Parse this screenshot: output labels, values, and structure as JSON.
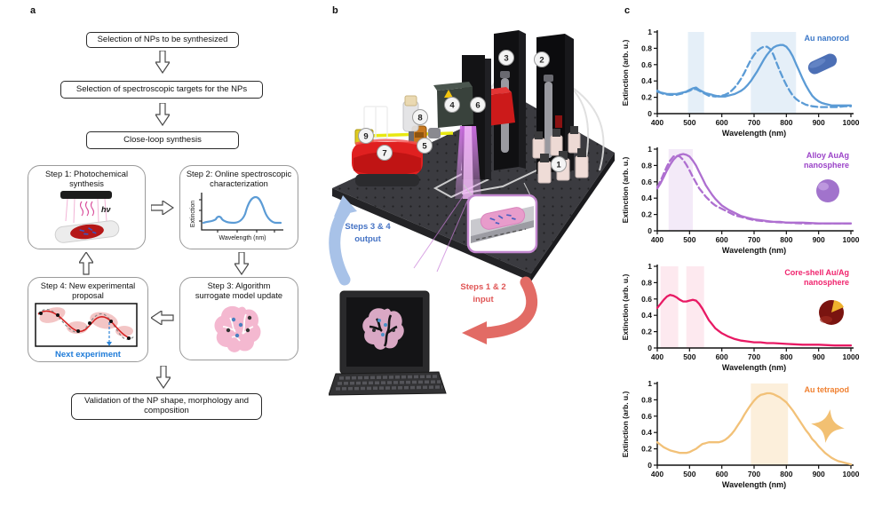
{
  "figure": {
    "panel_a_label": "a",
    "panel_b_label": "b",
    "panel_c_label": "c"
  },
  "flowchart": {
    "box_select_np": "Selection of NPs to be synthesized",
    "box_select_targets": "Selection of spectroscopic targets for the NPs",
    "box_close_loop": "Close-loop synthesis",
    "step1_title_line1": "Step 1: Photochemical",
    "step1_title_line2": "synthesis",
    "step1_hv": "hν",
    "step2_title_line1": "Step 2: Online spectroscopic",
    "step2_title_line2": "characterization",
    "step2_ylabel": "Extinction",
    "step2_xlabel": "Wavelength (nm)",
    "step3_title_line1": "Step 3: Algorithm",
    "step3_title_line2": "surrogate model update",
    "step4_title_line1": "Step 4: New experimental",
    "step4_title_line2": "proposal",
    "step4_annotation": "Next experiment",
    "step4_annotation_color": "#1E7BD8",
    "box_validation_line1": "Validation of the NP shape, morphology and",
    "box_validation_line2": "composition"
  },
  "apparatus": {
    "badges": [
      "1",
      "2",
      "3",
      "4",
      "5",
      "6",
      "7",
      "8",
      "9"
    ],
    "output_arrow_line1": "Steps 3 & 4",
    "output_arrow_line2": "output",
    "input_arrow_line1": "Steps 1 & 2",
    "input_arrow_line2": "input",
    "output_text_color": "#4472C4",
    "input_text_color": "#E05555",
    "output_arrow_color": "#A8C2E8",
    "input_arrow_color": "#E26B65"
  },
  "chart_data": [
    {
      "type": "line",
      "legend": [
        "Au nanorod"
      ],
      "legend_color": "#3C78C8",
      "icon": "nanorod-icon",
      "xlabel": "Wavelength (nm)",
      "ylabel": "Extinction (arb. u.)",
      "xlim": [
        400,
        1000
      ],
      "ylim": [
        0,
        1
      ],
      "xticks": [
        400,
        500,
        600,
        700,
        800,
        900,
        1000
      ],
      "yticks": [
        0,
        0.2,
        0.4,
        0.6,
        0.8,
        1
      ],
      "bands": [
        [
          495,
          545
        ],
        [
          690,
          830
        ]
      ],
      "band_color": "rgba(91,155,213,0.16)",
      "series": [
        {
          "name": "solid",
          "style": "solid",
          "color": "#5B9BD5",
          "x": [
            400,
            410,
            420,
            430,
            440,
            450,
            460,
            470,
            480,
            490,
            500,
            510,
            520,
            530,
            540,
            550,
            560,
            570,
            580,
            590,
            600,
            610,
            620,
            630,
            640,
            650,
            660,
            670,
            680,
            690,
            700,
            710,
            720,
            730,
            740,
            750,
            760,
            770,
            780,
            790,
            800,
            810,
            820,
            830,
            840,
            850,
            860,
            870,
            880,
            890,
            900,
            910,
            920,
            930,
            940,
            950,
            960,
            970,
            980,
            990,
            1000
          ],
          "y": [
            0.28,
            0.26,
            0.25,
            0.24,
            0.24,
            0.24,
            0.24,
            0.25,
            0.26,
            0.27,
            0.29,
            0.31,
            0.32,
            0.29,
            0.27,
            0.25,
            0.24,
            0.23,
            0.22,
            0.21,
            0.21,
            0.21,
            0.22,
            0.23,
            0.24,
            0.26,
            0.28,
            0.31,
            0.35,
            0.4,
            0.46,
            0.52,
            0.59,
            0.66,
            0.72,
            0.77,
            0.81,
            0.83,
            0.84,
            0.84,
            0.82,
            0.77,
            0.7,
            0.61,
            0.52,
            0.43,
            0.35,
            0.28,
            0.22,
            0.18,
            0.15,
            0.13,
            0.12,
            0.11,
            0.1,
            0.1,
            0.1,
            0.1,
            0.1,
            0.1,
            0.1
          ]
        },
        {
          "name": "dashed",
          "style": "dashed",
          "color": "#5B9BD5",
          "x": [
            400,
            420,
            440,
            460,
            480,
            500,
            510,
            520,
            530,
            540,
            560,
            580,
            600,
            610,
            620,
            630,
            640,
            650,
            660,
            670,
            680,
            690,
            700,
            710,
            720,
            730,
            740,
            750,
            760,
            770,
            780,
            790,
            800,
            810,
            820,
            830,
            840,
            850,
            860,
            880,
            900,
            920,
            940,
            960,
            980,
            1000
          ],
          "y": [
            0.27,
            0.24,
            0.23,
            0.23,
            0.25,
            0.28,
            0.3,
            0.3,
            0.28,
            0.26,
            0.22,
            0.21,
            0.22,
            0.23,
            0.25,
            0.28,
            0.32,
            0.37,
            0.43,
            0.5,
            0.58,
            0.66,
            0.72,
            0.77,
            0.8,
            0.82,
            0.82,
            0.79,
            0.72,
            0.62,
            0.52,
            0.43,
            0.35,
            0.28,
            0.22,
            0.18,
            0.15,
            0.13,
            0.11,
            0.09,
            0.08,
            0.08,
            0.08,
            0.08,
            0.09,
            0.09
          ]
        }
      ]
    },
    {
      "type": "line",
      "legend": [
        "Alloy AuAg",
        "nanosphere"
      ],
      "legend_color": "#9B43C8",
      "icon": "alloy-nanosphere-icon",
      "xlabel": "Wavelength (nm)",
      "ylabel": "Extinction (arb. u.)",
      "xlim": [
        400,
        1000
      ],
      "ylim": [
        0,
        1
      ],
      "xticks": [
        400,
        500,
        600,
        700,
        800,
        900,
        1000
      ],
      "yticks": [
        0,
        0.2,
        0.4,
        0.6,
        0.8,
        1
      ],
      "bands": [
        [
          435,
          510
        ]
      ],
      "band_color": "rgba(174,111,208,0.15)",
      "series": [
        {
          "name": "solid",
          "style": "solid",
          "color": "#AE6FD0",
          "x": [
            400,
            410,
            420,
            430,
            440,
            450,
            460,
            470,
            480,
            490,
            500,
            510,
            520,
            530,
            540,
            550,
            560,
            570,
            580,
            590,
            600,
            620,
            640,
            660,
            680,
            700,
            720,
            740,
            760,
            780,
            800,
            850,
            900,
            950,
            1000
          ],
          "y": [
            0.52,
            0.58,
            0.66,
            0.74,
            0.81,
            0.87,
            0.91,
            0.93,
            0.94,
            0.93,
            0.91,
            0.86,
            0.8,
            0.72,
            0.64,
            0.56,
            0.5,
            0.44,
            0.39,
            0.35,
            0.31,
            0.26,
            0.22,
            0.18,
            0.16,
            0.14,
            0.13,
            0.12,
            0.11,
            0.11,
            0.1,
            0.1,
            0.09,
            0.09,
            0.09
          ]
        },
        {
          "name": "dashed",
          "style": "dashed",
          "color": "#AE6FD0",
          "x": [
            400,
            410,
            420,
            430,
            440,
            450,
            460,
            470,
            480,
            490,
            500,
            510,
            520,
            530,
            540,
            550,
            560,
            570,
            580,
            600,
            620,
            640,
            660,
            680,
            700,
            750,
            800,
            850,
            900,
            950,
            1000
          ],
          "y": [
            0.53,
            0.61,
            0.7,
            0.79,
            0.86,
            0.91,
            0.92,
            0.91,
            0.87,
            0.81,
            0.74,
            0.66,
            0.59,
            0.52,
            0.47,
            0.42,
            0.38,
            0.34,
            0.31,
            0.27,
            0.23,
            0.19,
            0.17,
            0.15,
            0.13,
            0.11,
            0.1,
            0.09,
            0.09,
            0.09,
            0.09
          ]
        }
      ]
    },
    {
      "type": "line",
      "legend": [
        "Core-shell Au/Ag",
        "nanosphere"
      ],
      "legend_color": "#F0246E",
      "icon": "core-shell-icon",
      "xlabel": "Wavelength (nm)",
      "ylabel": "Extinction (arb. u.)",
      "xlim": [
        400,
        1000
      ],
      "ylim": [
        0,
        1
      ],
      "xticks": [
        400,
        500,
        600,
        700,
        800,
        900,
        1000
      ],
      "yticks": [
        0,
        0.2,
        0.4,
        0.6,
        0.8,
        1
      ],
      "bands": [
        [
          410,
          465
        ],
        [
          490,
          545
        ]
      ],
      "band_color": "rgba(240,70,120,0.12)",
      "series": [
        {
          "name": "solid",
          "style": "solid",
          "color": "#E81A64",
          "x": [
            400,
            410,
            420,
            430,
            440,
            450,
            460,
            470,
            480,
            490,
            500,
            510,
            520,
            530,
            540,
            550,
            560,
            570,
            580,
            590,
            600,
            620,
            640,
            660,
            680,
            700,
            720,
            740,
            760,
            800,
            850,
            900,
            950,
            1000
          ],
          "y": [
            0.49,
            0.54,
            0.59,
            0.63,
            0.65,
            0.64,
            0.62,
            0.59,
            0.57,
            0.57,
            0.58,
            0.59,
            0.58,
            0.54,
            0.48,
            0.41,
            0.34,
            0.29,
            0.24,
            0.21,
            0.18,
            0.14,
            0.11,
            0.09,
            0.08,
            0.07,
            0.07,
            0.06,
            0.06,
            0.05,
            0.04,
            0.04,
            0.03,
            0.03
          ]
        }
      ]
    },
    {
      "type": "line",
      "legend": [
        "Au tetrapod"
      ],
      "legend_color": "#F08030",
      "icon": "tetrapod-icon",
      "xlabel": "Wavelength (nm)",
      "ylabel": "Extinction (arb. u.)",
      "xlim": [
        400,
        1000
      ],
      "ylim": [
        0,
        1
      ],
      "xticks": [
        400,
        500,
        600,
        700,
        800,
        900,
        1000
      ],
      "yticks": [
        0,
        0.2,
        0.4,
        0.6,
        0.8,
        1
      ],
      "bands": [
        [
          690,
          805
        ]
      ],
      "band_color": "rgba(245,190,110,0.25)",
      "series": [
        {
          "name": "solid",
          "style": "solid",
          "color": "#F2C178",
          "x": [
            400,
            410,
            420,
            430,
            440,
            450,
            460,
            470,
            480,
            490,
            500,
            510,
            520,
            530,
            540,
            550,
            560,
            570,
            580,
            590,
            600,
            610,
            620,
            630,
            640,
            650,
            660,
            670,
            680,
            690,
            700,
            710,
            720,
            730,
            740,
            750,
            760,
            770,
            780,
            790,
            800,
            810,
            820,
            830,
            840,
            850,
            860,
            870,
            880,
            890,
            900,
            910,
            920,
            930,
            940,
            950,
            960,
            970,
            980,
            990,
            1000
          ],
          "y": [
            0.28,
            0.25,
            0.22,
            0.2,
            0.18,
            0.17,
            0.16,
            0.15,
            0.15,
            0.15,
            0.16,
            0.18,
            0.2,
            0.23,
            0.26,
            0.27,
            0.28,
            0.28,
            0.28,
            0.28,
            0.29,
            0.31,
            0.34,
            0.38,
            0.43,
            0.49,
            0.55,
            0.62,
            0.68,
            0.74,
            0.79,
            0.83,
            0.86,
            0.87,
            0.88,
            0.88,
            0.87,
            0.85,
            0.83,
            0.8,
            0.77,
            0.72,
            0.67,
            0.61,
            0.55,
            0.49,
            0.43,
            0.38,
            0.32,
            0.28,
            0.23,
            0.19,
            0.15,
            0.12,
            0.09,
            0.07,
            0.05,
            0.04,
            0.03,
            0.02,
            0.01
          ]
        }
      ]
    }
  ]
}
